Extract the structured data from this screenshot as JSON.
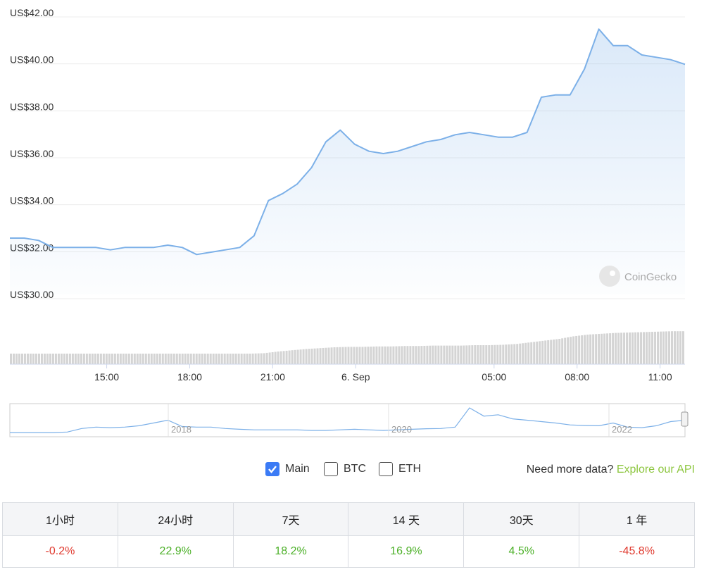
{
  "chart_data": [
    {
      "type": "area",
      "x": [
        "12:30",
        "13:00",
        "13:30",
        "14:00",
        "14:30",
        "15:00",
        "15:30",
        "16:00",
        "16:30",
        "17:00",
        "17:30",
        "18:00",
        "18:30",
        "19:00",
        "19:30",
        "20:00",
        "20:30",
        "21:00",
        "21:30",
        "22:00",
        "22:30",
        "23:00",
        "23:30",
        "6 Sep 00:00",
        "00:30",
        "01:00",
        "01:30",
        "02:00",
        "02:30",
        "03:00",
        "03:30",
        "04:00",
        "04:30",
        "05:00",
        "05:30",
        "06:00",
        "06:30",
        "07:00",
        "07:15",
        "07:30",
        "08:00",
        "08:30",
        "09:00",
        "09:30",
        "10:00",
        "10:30",
        "11:00",
        "11:30"
      ],
      "values": [
        32.4,
        32.4,
        32.3,
        32.0,
        32.0,
        32.0,
        32.0,
        31.9,
        32.0,
        32.0,
        32.0,
        32.1,
        32.0,
        31.7,
        31.8,
        31.9,
        32.0,
        32.5,
        34.0,
        34.3,
        34.7,
        35.4,
        36.5,
        37.0,
        36.4,
        36.1,
        36.0,
        36.1,
        36.3,
        36.5,
        36.6,
        36.8,
        36.9,
        36.8,
        36.7,
        36.7,
        36.9,
        38.4,
        38.5,
        38.5,
        39.6,
        41.3,
        40.6,
        40.6,
        40.2,
        40.1,
        40.0,
        39.8
      ],
      "ylim": [
        30,
        42
      ],
      "y_ticks": [
        "US$42.00",
        "US$40.00",
        "US$38.00",
        "US$36.00",
        "US$34.00",
        "US$32.00",
        "US$30.00"
      ],
      "y_tick_values": [
        42,
        40,
        38,
        36,
        34,
        32,
        30
      ],
      "x_tick_labels": [
        "15:00",
        "18:00",
        "21:00",
        "6. Sep",
        "05:00",
        "08:00",
        "11:00"
      ],
      "x_tick_hours": [
        15,
        18,
        21,
        24,
        29,
        32,
        35
      ],
      "x_range_hours": [
        11.5,
        35.9
      ],
      "line_color": "#7cb0e8",
      "watermark": "CoinGecko"
    },
    {
      "type": "bar",
      "name": "volume",
      "values": [
        0.25,
        0.25,
        0.25,
        0.25,
        0.25,
        0.25,
        0.25,
        0.25,
        0.25,
        0.25,
        0.25,
        0.25,
        0.25,
        0.25,
        0.25,
        0.25,
        0.25,
        0.25,
        0.26,
        0.3,
        0.33,
        0.36,
        0.38,
        0.4,
        0.41,
        0.41,
        0.42,
        0.42,
        0.43,
        0.43,
        0.44,
        0.44,
        0.44,
        0.45,
        0.45,
        0.46,
        0.48,
        0.52,
        0.56,
        0.6,
        0.66,
        0.7,
        0.72,
        0.74,
        0.75,
        0.76,
        0.77,
        0.78
      ],
      "bar_color": "#d4d4d4"
    },
    {
      "type": "line",
      "name": "navigator",
      "x_labels": [
        "2018",
        "2020",
        "2022"
      ],
      "values": [
        0.1,
        0.1,
        0.1,
        0.1,
        0.12,
        0.25,
        0.3,
        0.28,
        0.3,
        0.35,
        0.45,
        0.55,
        0.32,
        0.3,
        0.3,
        0.25,
        0.22,
        0.2,
        0.2,
        0.2,
        0.2,
        0.18,
        0.18,
        0.2,
        0.22,
        0.2,
        0.18,
        0.2,
        0.22,
        0.24,
        0.25,
        0.3,
        1.0,
        0.7,
        0.75,
        0.6,
        0.55,
        0.5,
        0.45,
        0.38,
        0.36,
        0.35,
        0.45,
        0.3,
        0.28,
        0.35,
        0.5,
        0.55
      ]
    }
  ],
  "legend": {
    "main_label": "Main",
    "btc_label": "BTC",
    "eth_label": "ETH",
    "api_text": "Need more data?",
    "api_link": "Explore our API"
  },
  "performance": {
    "headers": [
      "1小时",
      "24小时",
      "7天",
      "14 天",
      "30天",
      "1 年"
    ],
    "values": [
      "-0.2%",
      "22.9%",
      "18.2%",
      "16.9%",
      "4.5%",
      "-45.8%"
    ],
    "neg_color": "#e0392e",
    "pos_color": "#4cb028"
  }
}
